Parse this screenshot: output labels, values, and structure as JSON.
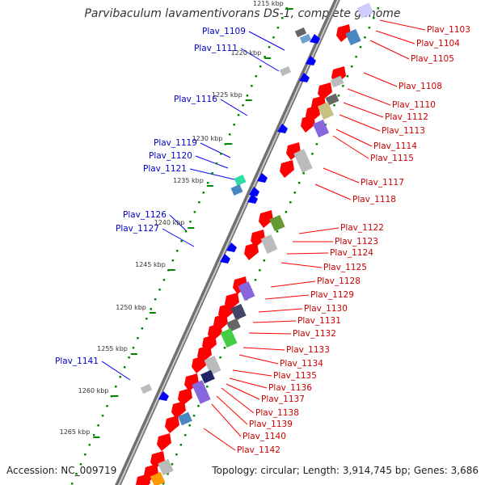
{
  "title": "Parvibaculum lavamentivorans DS-1, complete genome",
  "accession": "Accession: NC_009719",
  "topology": "Topology: circular; Length: 3,914,745 bp; Genes: 3,686",
  "colors": {
    "forward": "#ff0000",
    "reverse": "#0000ff",
    "backbone": "#888888",
    "ruler": "#008800"
  },
  "ruler": {
    "tick_labels": [
      "1215 kbp",
      "1220 kbp",
      "1225 kbp",
      "1230 kbp",
      "1235 kbp",
      "1240 kbp",
      "1245 kbp",
      "1250 kbp",
      "1255 kbp",
      "1260 kbp",
      "1265 kbp"
    ]
  },
  "reverse_labels": [
    "Plav_1109",
    "Plav_1111",
    "Plav_1116",
    "Plav_1119",
    "Plav_1120",
    "Plav_1121",
    "Plav_1126",
    "Plav_1127",
    "Plav_1141"
  ],
  "forward_labels": [
    "Plav_1103",
    "Plav_1104",
    "Plav_1105",
    "Plav_1108",
    "Plav_1110",
    "Plav_1112",
    "Plav_1113",
    "Plav_1114",
    "Plav_1115",
    "Plav_1117",
    "Plav_1118",
    "Plav_1122",
    "Plav_1123",
    "Plav_1124",
    "Plav_1125",
    "Plav_1128",
    "Plav_1129",
    "Plav_1130",
    "Plav_1131",
    "Plav_1132",
    "Plav_1133",
    "Plav_1134",
    "Plav_1135",
    "Plav_1136",
    "Plav_1137",
    "Plav_1138",
    "Plav_1139",
    "Plav_1140",
    "Plav_1142"
  ]
}
